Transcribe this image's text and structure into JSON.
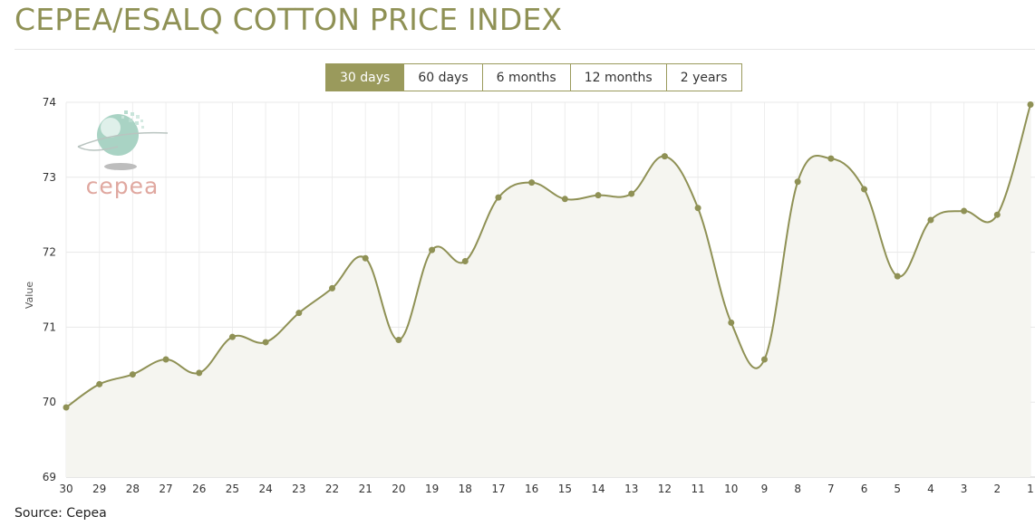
{
  "page": {
    "title": "CEPEA/ESALQ COTTON PRICE INDEX",
    "source": "Source: Cepea"
  },
  "range_tabs": [
    {
      "label": "30 days",
      "active": true
    },
    {
      "label": "60 days",
      "active": false
    },
    {
      "label": "6 months",
      "active": false
    },
    {
      "label": "12 months",
      "active": false
    },
    {
      "label": "2 years",
      "active": false
    }
  ],
  "logo": {
    "text": "cepea",
    "icon": "globe-logo-icon"
  },
  "colors": {
    "line": "#8f9155",
    "area": "#f5f5f0",
    "accent": "#9a9a5c",
    "logo_text": "#e0a8a0"
  },
  "chart_data": {
    "type": "area",
    "title": "",
    "xlabel": "",
    "ylabel": "Value",
    "ylim": [
      69,
      74
    ],
    "yticks": [
      69,
      70,
      71,
      72,
      73,
      74
    ],
    "categories": [
      "30",
      "29",
      "28",
      "27",
      "26",
      "25",
      "24",
      "23",
      "22",
      "21",
      "20",
      "19",
      "18",
      "17",
      "16",
      "15",
      "14",
      "13",
      "12",
      "11",
      "10",
      "9",
      "8",
      "7",
      "6",
      "5",
      "4",
      "3",
      "2",
      "1"
    ],
    "series": [
      {
        "values": [
          69.93,
          70.24,
          70.37,
          70.57,
          70.39,
          70.87,
          70.8,
          71.19,
          71.52,
          71.92,
          70.83,
          72.03,
          71.88,
          72.73,
          72.93,
          72.71,
          72.76,
          72.78,
          73.28,
          72.59,
          71.06,
          70.57,
          72.94,
          73.25,
          72.84,
          71.68,
          72.43,
          72.55,
          72.5,
          73.97
        ]
      }
    ],
    "grid": true,
    "legend": "none"
  }
}
